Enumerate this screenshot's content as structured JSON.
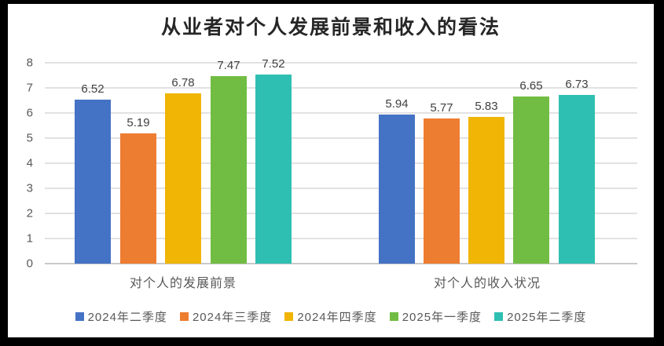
{
  "page": {
    "frame_color": "#000000",
    "canvas_background": "#ffffff"
  },
  "chart_data": {
    "type": "bar",
    "title": "从业者对个人发展前景和收入的看法",
    "categories": [
      "对个人的发展前景",
      "对个人的收入状况"
    ],
    "series": [
      {
        "name": "2024年二季度",
        "color": "#4472C4",
        "values": [
          6.52,
          5.94
        ],
        "labels": [
          "6.52",
          "5.94"
        ]
      },
      {
        "name": "2024年三季度",
        "color": "#ED7D31",
        "values": [
          5.19,
          5.77
        ],
        "labels": [
          "5.19",
          "5.77"
        ]
      },
      {
        "name": "2024年四季度",
        "color": "#F0B505",
        "values": [
          6.78,
          5.83
        ],
        "labels": [
          "6.78",
          "5.83"
        ]
      },
      {
        "name": "2025年一季度",
        "color": "#71BD44",
        "values": [
          7.47,
          6.65
        ],
        "labels": [
          "7.47",
          "6.65"
        ]
      },
      {
        "name": "2025年二季度",
        "color": "#2FBFB2",
        "values": [
          7.52,
          6.73
        ],
        "labels": [
          "7.52",
          "6.73"
        ]
      }
    ],
    "y_axis": {
      "min": 0,
      "max": 8,
      "step": 1,
      "tick_labels": [
        "0",
        "1",
        "2",
        "3",
        "4",
        "5",
        "6",
        "7",
        "8"
      ]
    },
    "grid": true,
    "legend_position": "bottom",
    "text_colors": {
      "title": "#262626",
      "axis": "#595959",
      "value_labels": "#404040"
    },
    "gridline_color": "#E2E2E2",
    "axis_line_color": "#C9C9C9"
  }
}
